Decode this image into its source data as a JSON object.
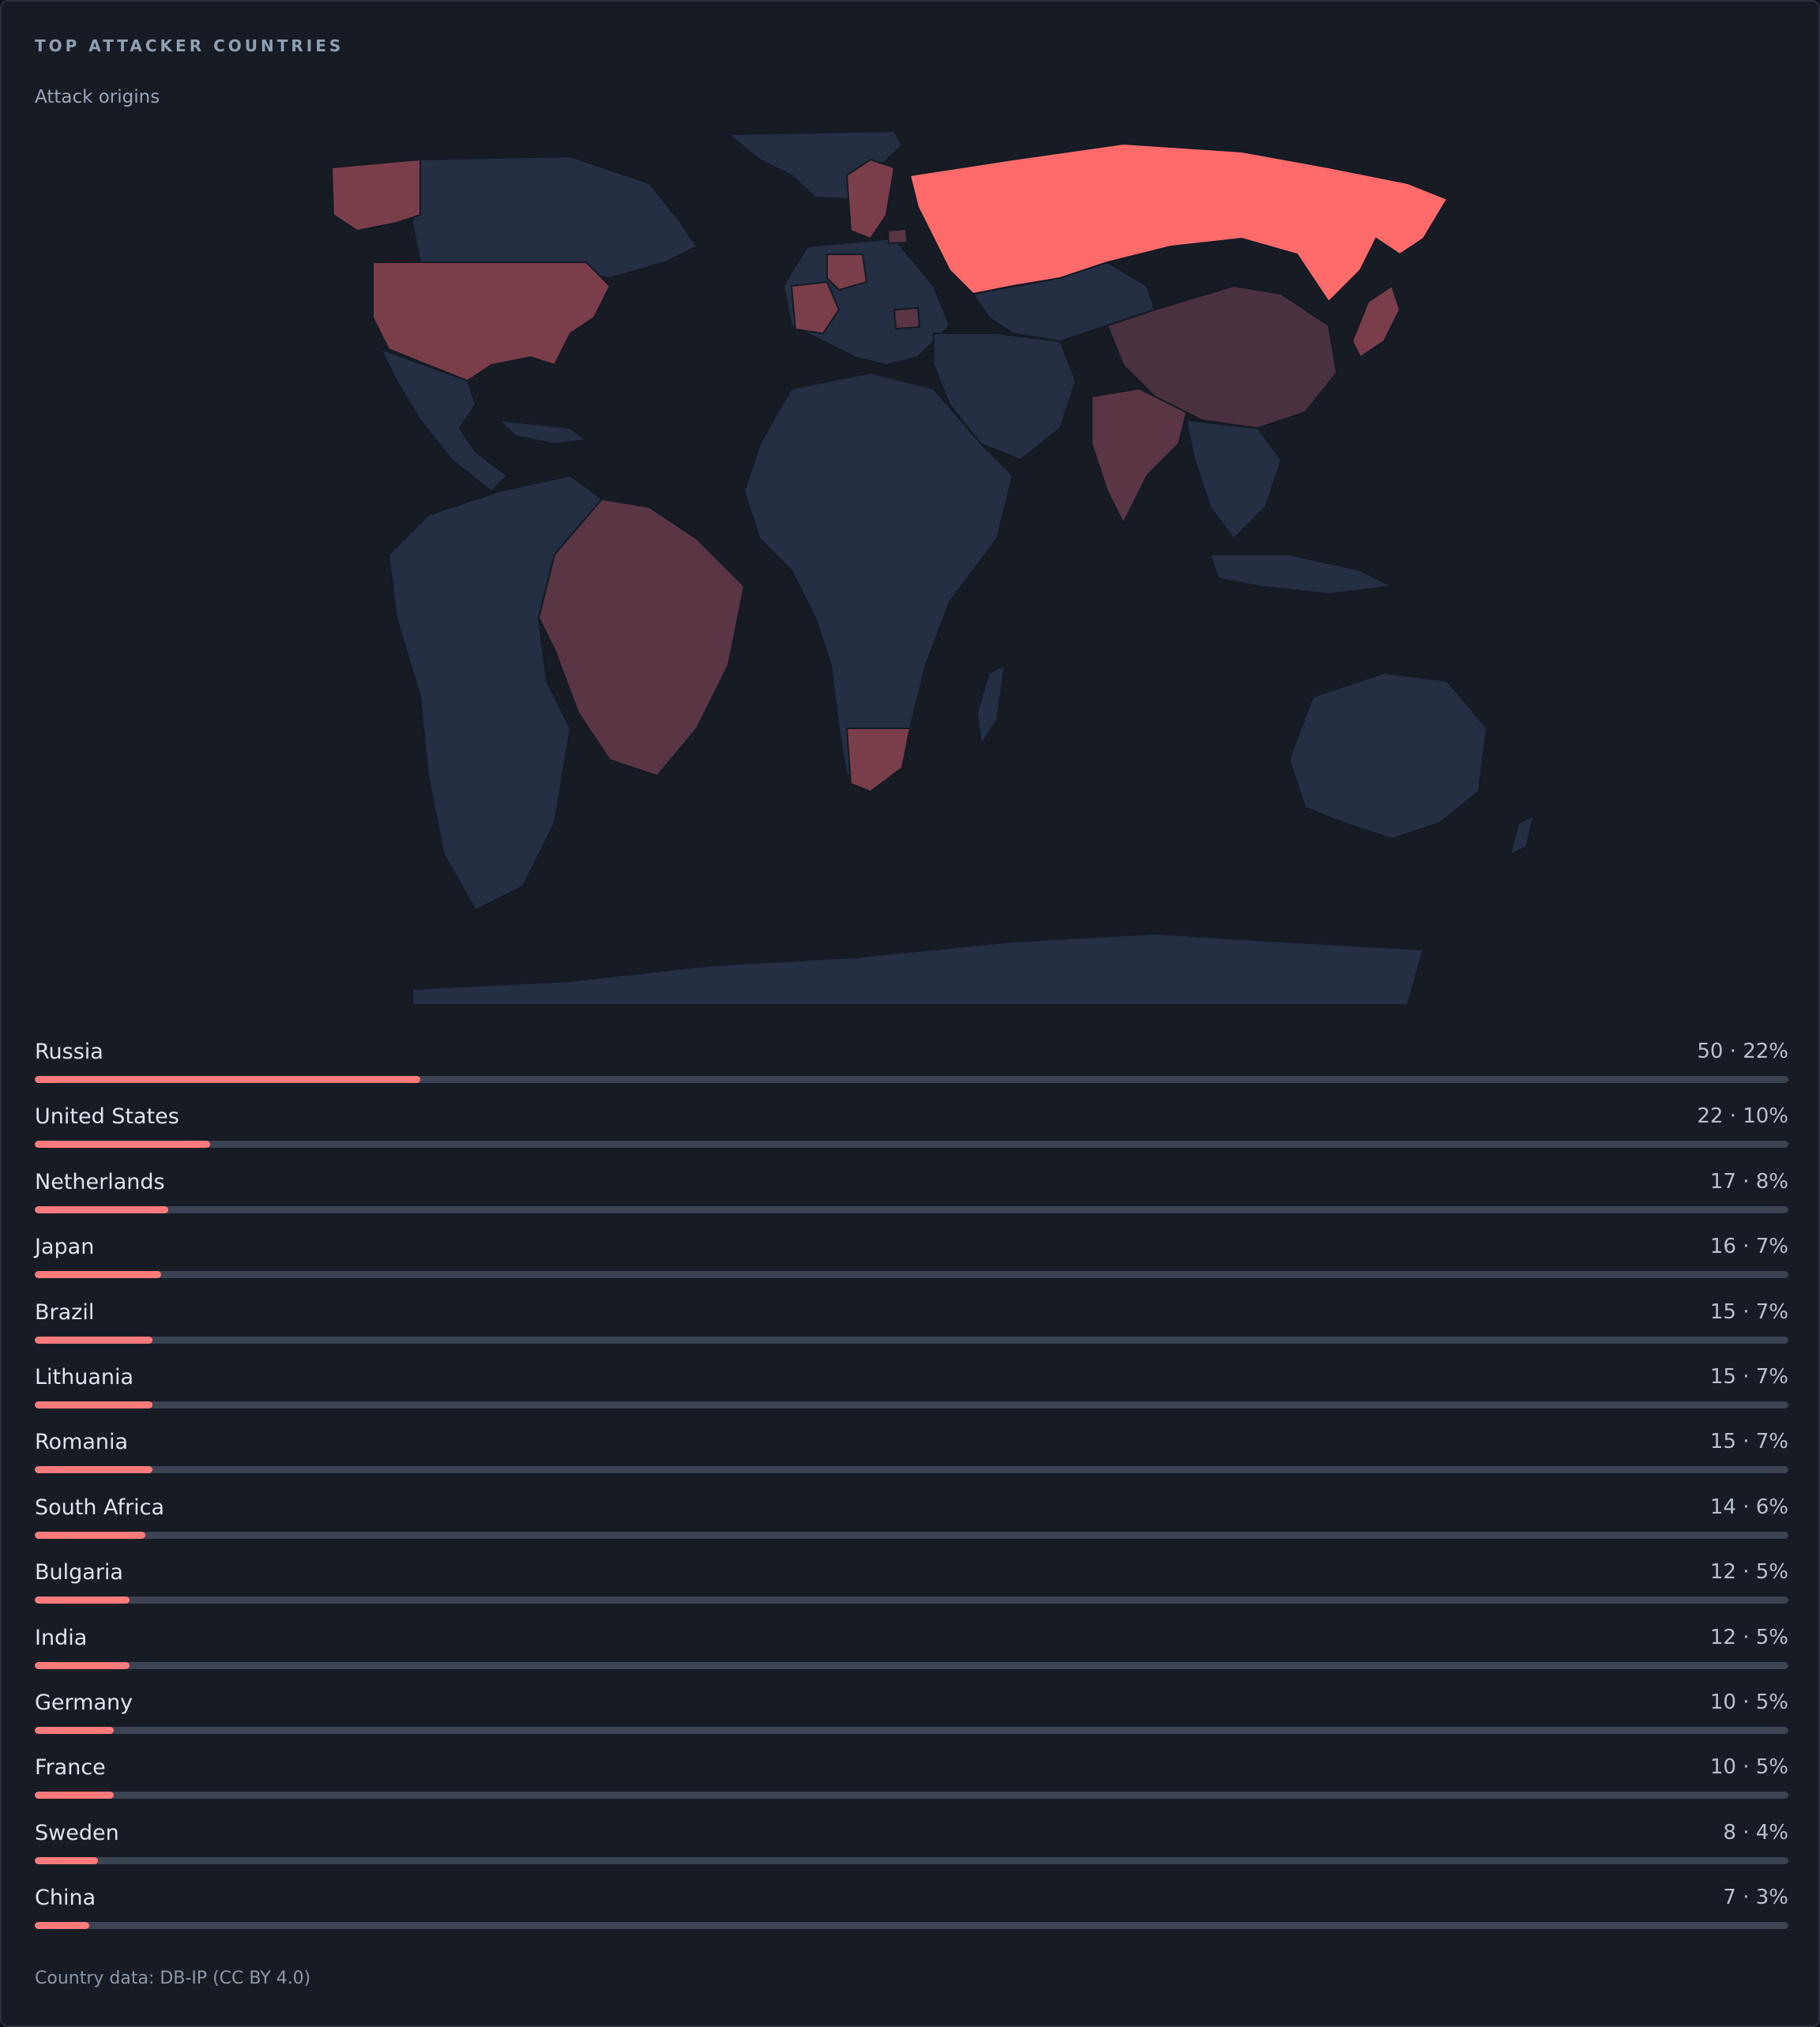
{
  "header": {
    "title": "TOP ATTACKER COUNTRIES",
    "subtitle": "Attack origins"
  },
  "colors": {
    "accent": "#ff6b6b",
    "bar_fill": "#ff7a7a",
    "bar_track": "#3a4452",
    "land": "#242f44",
    "background": "#161b24"
  },
  "countries": [
    {
      "name": "Russia",
      "value": "50 · 22%",
      "fraction": 0.22
    },
    {
      "name": "United States",
      "value": "22 · 10%",
      "fraction": 0.1
    },
    {
      "name": "Netherlands",
      "value": "17 · 8%",
      "fraction": 0.076
    },
    {
      "name": "Japan",
      "value": "16 · 7%",
      "fraction": 0.072
    },
    {
      "name": "Brazil",
      "value": "15 · 7%",
      "fraction": 0.067
    },
    {
      "name": "Lithuania",
      "value": "15 · 7%",
      "fraction": 0.067
    },
    {
      "name": "Romania",
      "value": "15 · 7%",
      "fraction": 0.067
    },
    {
      "name": "South Africa",
      "value": "14 · 6%",
      "fraction": 0.063
    },
    {
      "name": "Bulgaria",
      "value": "12 · 5%",
      "fraction": 0.054
    },
    {
      "name": "India",
      "value": "12 · 5%",
      "fraction": 0.054
    },
    {
      "name": "Germany",
      "value": "10 · 5%",
      "fraction": 0.045
    },
    {
      "name": "France",
      "value": "10 · 5%",
      "fraction": 0.045
    },
    {
      "name": "Sweden",
      "value": "8 · 4%",
      "fraction": 0.036
    },
    {
      "name": "China",
      "value": "7 · 3%",
      "fraction": 0.031
    }
  ],
  "footer": {
    "attribution": "Country data: DB-IP (CC BY 4.0)"
  }
}
